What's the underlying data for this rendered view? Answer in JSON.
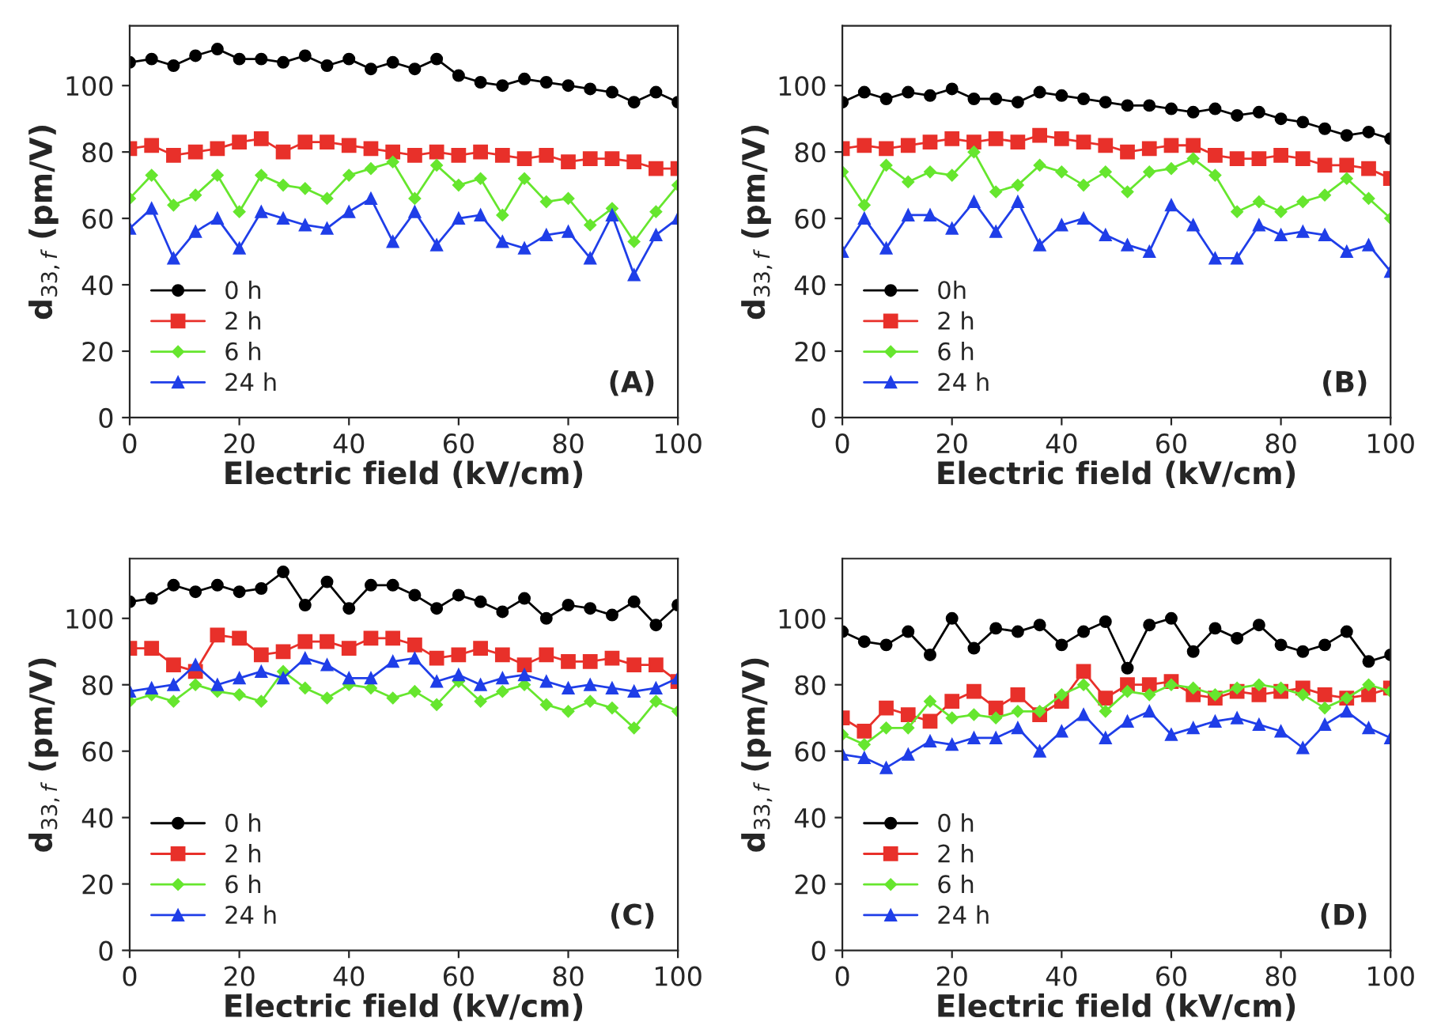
{
  "chart_data": [
    {
      "type": "line",
      "xlabel": "Electric field (kV/cm)",
      "ylabel": "d$_{33,f}$ (pm/V)",
      "annotations": [
        "(A)"
      ],
      "xlim": [
        0,
        100
      ],
      "xticks": [
        0,
        20,
        40,
        60,
        80,
        100
      ],
      "ylim": [
        0,
        118
      ],
      "yticks": [
        0,
        20,
        40,
        60,
        80,
        100
      ],
      "legend": "bottom left",
      "grid": false,
      "x": [
        0,
        4,
        8,
        12,
        16,
        20,
        24,
        28,
        32,
        36,
        40,
        44,
        48,
        52,
        56,
        60,
        64,
        68,
        72,
        76,
        80,
        84,
        88,
        92,
        96,
        100
      ],
      "series": [
        {
          "name": "0 h",
          "color": "#000000",
          "marker": "circle",
          "values": [
            107,
            108,
            106,
            109,
            111,
            108,
            108,
            107,
            109,
            106,
            108,
            105,
            107,
            105,
            108,
            103,
            101,
            100,
            102,
            101,
            100,
            99,
            98,
            95,
            98,
            95
          ]
        },
        {
          "name": "2 h",
          "color": "#e8302a",
          "marker": "square",
          "values": [
            81,
            82,
            79,
            80,
            81,
            83,
            84,
            80,
            83,
            83,
            82,
            81,
            80,
            79,
            80,
            79,
            80,
            79,
            78,
            79,
            77,
            78,
            78,
            77,
            75,
            75
          ]
        },
        {
          "name": "6 h",
          "color": "#66e62e",
          "marker": "diamond",
          "values": [
            66,
            73,
            64,
            67,
            73,
            62,
            73,
            70,
            69,
            66,
            73,
            75,
            77,
            66,
            76,
            70,
            72,
            61,
            72,
            65,
            66,
            58,
            63,
            53,
            62,
            70
          ]
        },
        {
          "name": "24 h",
          "color": "#1f3ee8",
          "marker": "triangle",
          "values": [
            57,
            63,
            48,
            56,
            60,
            51,
            62,
            60,
            58,
            57,
            62,
            66,
            53,
            62,
            52,
            60,
            61,
            53,
            51,
            55,
            56,
            48,
            61,
            43,
            55,
            60
          ]
        }
      ]
    },
    {
      "type": "line",
      "xlabel": "Electric field (kV/cm)",
      "ylabel": "d$_{33,f}$ (pm/V)",
      "annotations": [
        "(B)"
      ],
      "xlim": [
        0,
        100
      ],
      "xticks": [
        0,
        20,
        40,
        60,
        80,
        100
      ],
      "ylim": [
        0,
        118
      ],
      "yticks": [
        0,
        20,
        40,
        60,
        80,
        100
      ],
      "legend": "bottom left",
      "grid": false,
      "x": [
        0,
        4,
        8,
        12,
        16,
        20,
        24,
        28,
        32,
        36,
        40,
        44,
        48,
        52,
        56,
        60,
        64,
        68,
        72,
        76,
        80,
        84,
        88,
        92,
        96,
        100
      ],
      "series": [
        {
          "name": "0h",
          "color": "#000000",
          "marker": "circle",
          "values": [
            95,
            98,
            96,
            98,
            97,
            99,
            96,
            96,
            95,
            98,
            97,
            96,
            95,
            94,
            94,
            93,
            92,
            93,
            91,
            92,
            90,
            89,
            87,
            85,
            86,
            84
          ]
        },
        {
          "name": "2 h",
          "color": "#e8302a",
          "marker": "square",
          "values": [
            81,
            82,
            81,
            82,
            83,
            84,
            83,
            84,
            83,
            85,
            84,
            83,
            82,
            80,
            81,
            82,
            82,
            79,
            78,
            78,
            79,
            78,
            76,
            76,
            75,
            72
          ]
        },
        {
          "name": "6 h",
          "color": "#66e62e",
          "marker": "diamond",
          "values": [
            74,
            64,
            76,
            71,
            74,
            73,
            80,
            68,
            70,
            76,
            74,
            70,
            74,
            68,
            74,
            75,
            78,
            73,
            62,
            65,
            62,
            65,
            67,
            72,
            66,
            60
          ]
        },
        {
          "name": "24 h",
          "color": "#1f3ee8",
          "marker": "triangle",
          "values": [
            50,
            60,
            51,
            61,
            61,
            57,
            65,
            56,
            65,
            52,
            58,
            60,
            55,
            52,
            50,
            64,
            58,
            48,
            48,
            58,
            55,
            56,
            55,
            50,
            52,
            44
          ]
        }
      ]
    },
    {
      "type": "line",
      "xlabel": "Electric field (kV/cm)",
      "ylabel": "d$_{33,f}$ (pm/V)",
      "annotations": [
        "(C)"
      ],
      "xlim": [
        0,
        100
      ],
      "xticks": [
        0,
        20,
        40,
        60,
        80,
        100
      ],
      "ylim": [
        0,
        118
      ],
      "yticks": [
        0,
        20,
        40,
        60,
        80,
        100
      ],
      "legend": "bottom left",
      "grid": false,
      "x": [
        0,
        4,
        8,
        12,
        16,
        20,
        24,
        28,
        32,
        36,
        40,
        44,
        48,
        52,
        56,
        60,
        64,
        68,
        72,
        76,
        80,
        84,
        88,
        92,
        96,
        100
      ],
      "series": [
        {
          "name": "0 h",
          "color": "#000000",
          "marker": "circle",
          "values": [
            105,
            106,
            110,
            108,
            110,
            108,
            109,
            114,
            104,
            111,
            103,
            110,
            110,
            107,
            103,
            107,
            105,
            102,
            106,
            100,
            104,
            103,
            101,
            105,
            98,
            104
          ]
        },
        {
          "name": "2 h",
          "color": "#e8302a",
          "marker": "square",
          "values": [
            91,
            91,
            86,
            84,
            95,
            94,
            89,
            90,
            93,
            93,
            91,
            94,
            94,
            92,
            88,
            89,
            91,
            89,
            86,
            89,
            87,
            87,
            88,
            86,
            86,
            81
          ]
        },
        {
          "name": "6 h",
          "color": "#66e62e",
          "marker": "diamond",
          "values": [
            75,
            77,
            75,
            80,
            78,
            77,
            75,
            84,
            79,
            76,
            80,
            79,
            76,
            78,
            74,
            81,
            75,
            78,
            80,
            74,
            72,
            75,
            73,
            67,
            75,
            72
          ]
        },
        {
          "name": "24 h",
          "color": "#1f3ee8",
          "marker": "triangle",
          "values": [
            78,
            79,
            80,
            86,
            80,
            82,
            84,
            82,
            88,
            86,
            82,
            82,
            87,
            88,
            81,
            83,
            80,
            82,
            83,
            81,
            79,
            80,
            79,
            78,
            79,
            82
          ]
        }
      ]
    },
    {
      "type": "line",
      "xlabel": "Electric field (kV/cm)",
      "ylabel": "d$_{33,f}$ (pm/V)",
      "annotations": [
        "(D)"
      ],
      "xlim": [
        0,
        100
      ],
      "xticks": [
        0,
        20,
        40,
        60,
        80,
        100
      ],
      "ylim": [
        0,
        118
      ],
      "yticks": [
        0,
        20,
        40,
        60,
        80,
        100
      ],
      "legend": "bottom left",
      "grid": false,
      "x": [
        0,
        4,
        8,
        12,
        16,
        20,
        24,
        28,
        32,
        36,
        40,
        44,
        48,
        52,
        56,
        60,
        64,
        68,
        72,
        76,
        80,
        84,
        88,
        92,
        96,
        100
      ],
      "series": [
        {
          "name": "0 h",
          "color": "#000000",
          "marker": "circle",
          "values": [
            96,
            93,
            92,
            96,
            89,
            100,
            91,
            97,
            96,
            98,
            92,
            96,
            99,
            85,
            98,
            100,
            90,
            97,
            94,
            98,
            92,
            90,
            92,
            96,
            87,
            89
          ]
        },
        {
          "name": "2 h",
          "color": "#e8302a",
          "marker": "square",
          "values": [
            70,
            66,
            73,
            71,
            69,
            75,
            78,
            73,
            77,
            71,
            75,
            84,
            76,
            80,
            80,
            81,
            77,
            76,
            78,
            77,
            78,
            79,
            77,
            76,
            77,
            79
          ]
        },
        {
          "name": "6 h",
          "color": "#66e62e",
          "marker": "diamond",
          "values": [
            65,
            62,
            67,
            67,
            75,
            70,
            71,
            70,
            72,
            72,
            77,
            80,
            72,
            78,
            77,
            80,
            79,
            77,
            79,
            80,
            79,
            77,
            73,
            76,
            80,
            78
          ]
        },
        {
          "name": "24 h",
          "color": "#1f3ee8",
          "marker": "triangle",
          "values": [
            59,
            58,
            55,
            59,
            63,
            62,
            64,
            64,
            67,
            60,
            66,
            71,
            64,
            69,
            72,
            65,
            67,
            69,
            70,
            68,
            66,
            61,
            68,
            72,
            67,
            64
          ]
        }
      ]
    }
  ]
}
